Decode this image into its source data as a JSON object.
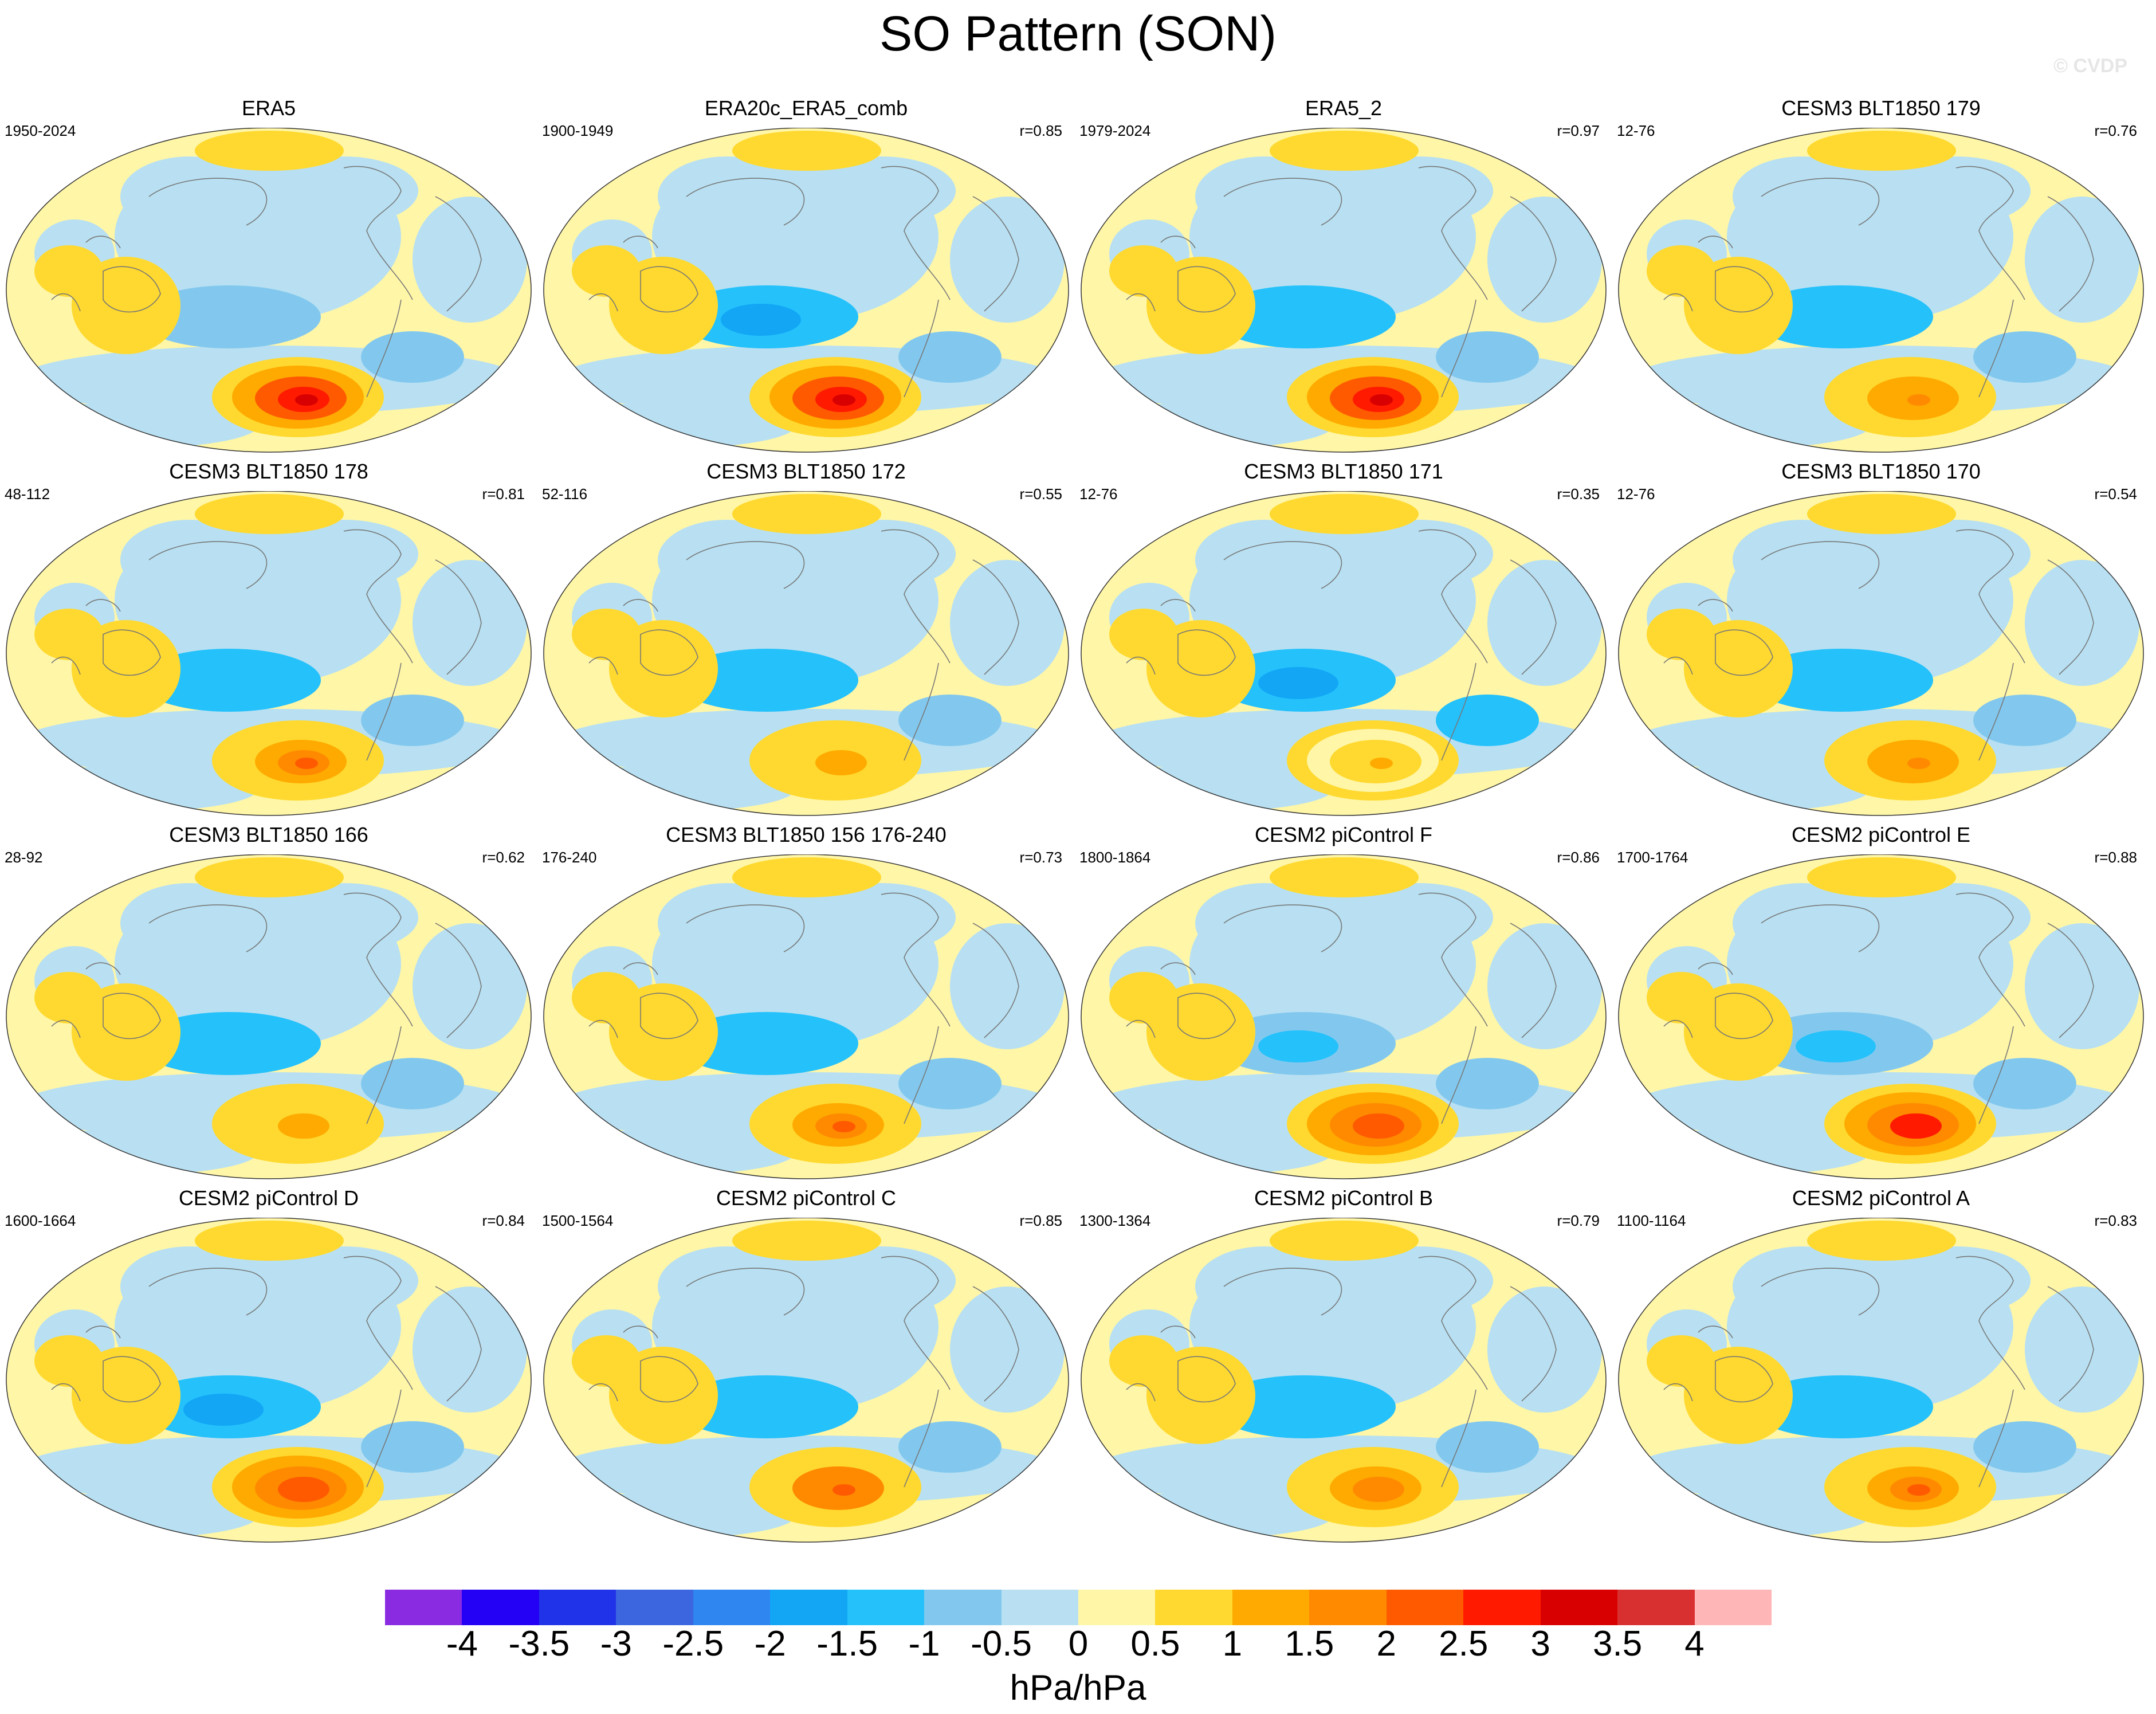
{
  "title": "SO Pattern (SON)",
  "watermark": "© CVDP",
  "chart_data": {
    "type": "heatmap",
    "title": "SO Pattern (SON)",
    "projection": "Robinson",
    "units": "hPa/hPa",
    "levels": [
      -4,
      -3.5,
      -3,
      -2.5,
      -2,
      -1.5,
      -1,
      -0.5,
      0,
      0.5,
      1,
      1.5,
      2,
      2.5,
      3,
      3.5,
      4
    ],
    "tick_labels": [
      "-4",
      "-3.5",
      "-3",
      "-2.5",
      "-2",
      "-1.5",
      "-1",
      "-0.5",
      "0",
      "0.5",
      "1",
      "1.5",
      "2",
      "2.5",
      "3",
      "3.5",
      "4"
    ],
    "colors": [
      "#8a2be2",
      "#2400f5",
      "#2033e8",
      "#3b66e0",
      "#2f86f0",
      "#12a6f5",
      "#24c1fb",
      "#82c8ee",
      "#b8e0f2",
      "#fff6a8",
      "#ffd92f",
      "#ffaa00",
      "#ff8a00",
      "#ff5a00",
      "#ff1a00",
      "#d80000",
      "#d83030",
      "#ffb6b6"
    ],
    "panels": [
      {
        "title": "ERA5",
        "years": "1950-2024",
        "r": "",
        "peak": 3.0,
        "low": 0.9
      },
      {
        "title": "ERA20c_ERA5_comb",
        "years": "1900-1949",
        "r": "r=0.85",
        "peak": 3.2,
        "low": 1.6
      },
      {
        "title": "ERA5_2",
        "years": "1979-2024",
        "r": "r=0.97",
        "peak": 3.1,
        "low": 1.5
      },
      {
        "title": "CESM3 BLT1850 179",
        "years": "12-76",
        "r": "r=0.76",
        "peak": 1.6,
        "low": 1.4
      },
      {
        "title": "CESM3 BLT1850 178",
        "years": "48-112",
        "r": "r=0.81",
        "peak": 2.1,
        "low": 1.4
      },
      {
        "title": "CESM3 BLT1850 172",
        "years": "52-116",
        "r": "r=0.55",
        "peak": 1.3,
        "low": 1.4
      },
      {
        "title": "CESM3 BLT1850 171",
        "years": "12-76",
        "r": "r=0.35",
        "peak": 1.1,
        "low": 1.9
      },
      {
        "title": "CESM3 BLT1850 170",
        "years": "12-76",
        "r": "r=0.54",
        "peak": 1.6,
        "low": 1.4
      },
      {
        "title": "CESM3 BLT1850 166",
        "years": "28-92",
        "r": "r=0.62",
        "peak": 1.2,
        "low": 1.4
      },
      {
        "title": "CESM3 BLT1850 156 176-240",
        "years": "176-240",
        "r": "r=0.73",
        "peak": 2.1,
        "low": 1.4
      },
      {
        "title": "CESM2 piControl F",
        "years": "1800-1864",
        "r": "r=0.86",
        "peak": 2.3,
        "low": 1.3
      },
      {
        "title": "CESM2 piControl E",
        "years": "1700-1764",
        "r": "r=0.88",
        "peak": 2.8,
        "low": 1.3
      },
      {
        "title": "CESM2 piControl D",
        "years": "1600-1664",
        "r": "r=0.84",
        "peak": 2.4,
        "low": 1.6
      },
      {
        "title": "CESM2 piControl C",
        "years": "1500-1564",
        "r": "r=0.85",
        "peak": 2.2,
        "low": 1.4
      },
      {
        "title": "CESM2 piControl B",
        "years": "1300-1364",
        "r": "r=0.79",
        "peak": 1.9,
        "low": 1.4
      },
      {
        "title": "CESM2 piControl A",
        "years": "1100-1164",
        "r": "r=0.83",
        "peak": 2.0,
        "low": 1.4
      }
    ]
  }
}
